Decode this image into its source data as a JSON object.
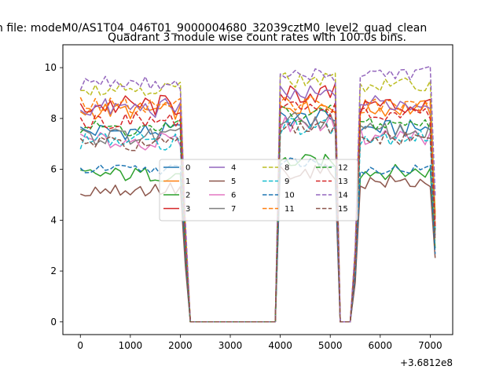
{
  "chart_data": {
    "type": "line",
    "suptitle": "n file: modeM0/AS1T04_046T01_9000004680_32039cztM0_level2_quad_clean",
    "title": "Quadrant 3 module wise count rates with 100.0s bins.",
    "xlabel": "",
    "ylabel": "",
    "x_offset_label": "+3.6812e8",
    "xlim": [
      -350,
      7450
    ],
    "ylim": [
      -0.5,
      10.9
    ],
    "x_ticks": [
      0,
      1000,
      2000,
      3000,
      4000,
      5000,
      6000,
      7000
    ],
    "y_ticks": [
      0,
      2,
      4,
      6,
      8,
      10
    ],
    "grid": false,
    "legend_location": "center",
    "legend_columns": 4,
    "x": [
      0,
      100,
      200,
      300,
      400,
      500,
      600,
      700,
      800,
      900,
      1000,
      1100,
      1200,
      1300,
      1400,
      1500,
      1600,
      1700,
      1800,
      1900,
      2000,
      2100,
      2200,
      2300,
      2400,
      2500,
      2600,
      2700,
      2800,
      2900,
      3000,
      3100,
      3200,
      3300,
      3400,
      3500,
      3600,
      3700,
      3800,
      3900,
      4000,
      4100,
      4200,
      4300,
      4400,
      4500,
      4600,
      4700,
      4800,
      4900,
      5000,
      5100,
      5200,
      5300,
      5400,
      5500,
      5600,
      5700,
      5800,
      5900,
      6000,
      6100,
      6200,
      6300,
      6400,
      6500,
      6600,
      6700,
      6800,
      6900,
      7000,
      7100
    ],
    "series": [
      {
        "name": "0",
        "color": "#1f77b4",
        "style": "solid",
        "base1": 7.5,
        "base2": 8.0,
        "base3": 7.6,
        "amp": 0.35
      },
      {
        "name": "1",
        "color": "#ff7f0e",
        "style": "solid",
        "base1": 8.3,
        "base2": 8.5,
        "base3": 8.4,
        "amp": 0.35
      },
      {
        "name": "2",
        "color": "#2ca02c",
        "style": "solid",
        "base1": 5.8,
        "base2": 6.3,
        "base3": 5.9,
        "amp": 0.3
      },
      {
        "name": "3",
        "color": "#d62728",
        "style": "solid",
        "base1": 8.5,
        "base2": 9.0,
        "base3": 8.5,
        "amp": 0.45
      },
      {
        "name": "4",
        "color": "#9467bd",
        "style": "solid",
        "base1": 8.4,
        "base2": 8.9,
        "base3": 8.6,
        "amp": 0.4
      },
      {
        "name": "5",
        "color": "#8c564b",
        "style": "solid",
        "base1": 5.2,
        "base2": 5.9,
        "base3": 5.5,
        "amp": 0.3
      },
      {
        "name": "6",
        "color": "#e377c2",
        "style": "solid",
        "base1": 7.1,
        "base2": 7.8,
        "base3": 7.3,
        "amp": 0.35
      },
      {
        "name": "7",
        "color": "#7f7f7f",
        "style": "solid",
        "base1": 7.3,
        "base2": 7.9,
        "base3": 7.5,
        "amp": 0.35
      },
      {
        "name": "8",
        "color": "#bcbd22",
        "style": "dashed",
        "base1": 9.2,
        "base2": 9.5,
        "base3": 9.3,
        "amp": 0.3
      },
      {
        "name": "9",
        "color": "#17becf",
        "style": "dashed",
        "base1": 7.1,
        "base2": 7.7,
        "base3": 7.3,
        "amp": 0.35
      },
      {
        "name": "10",
        "color": "#1f77b4",
        "style": "dashed",
        "base1": 6.0,
        "base2": 6.3,
        "base3": 6.0,
        "amp": 0.2
      },
      {
        "name": "11",
        "color": "#ff7f0e",
        "style": "dashed",
        "base1": 8.5,
        "base2": 8.6,
        "base3": 8.5,
        "amp": 0.35
      },
      {
        "name": "12",
        "color": "#2ca02c",
        "style": "dashed",
        "base1": 7.6,
        "base2": 8.2,
        "base3": 7.8,
        "amp": 0.35
      },
      {
        "name": "13",
        "color": "#d62728",
        "style": "dashed",
        "base1": 7.9,
        "base2": 8.4,
        "base3": 8.1,
        "amp": 0.35
      },
      {
        "name": "14",
        "color": "#9467bd",
        "style": "dashed",
        "base1": 9.4,
        "base2": 9.7,
        "base3": 9.8,
        "amp": 0.3
      },
      {
        "name": "15",
        "color": "#8c564b",
        "style": "dashed",
        "base1": 7.0,
        "base2": 7.6,
        "base3": 7.2,
        "amp": 0.3
      }
    ],
    "segments": [
      {
        "from": 0,
        "to": 2000,
        "level": "base1"
      },
      {
        "from": 2100,
        "to": 2100,
        "level": "ramp_down"
      },
      {
        "from": 2200,
        "to": 3900,
        "level": 0
      },
      {
        "from": 4000,
        "to": 5100,
        "level": "base2"
      },
      {
        "from": 5200,
        "to": 5400,
        "level": 0
      },
      {
        "from": 5500,
        "to": 5500,
        "level": "ramp_up"
      },
      {
        "from": 5600,
        "to": 7000,
        "level": "base3"
      },
      {
        "from": 7100,
        "to": 7100,
        "level": "end"
      }
    ]
  }
}
